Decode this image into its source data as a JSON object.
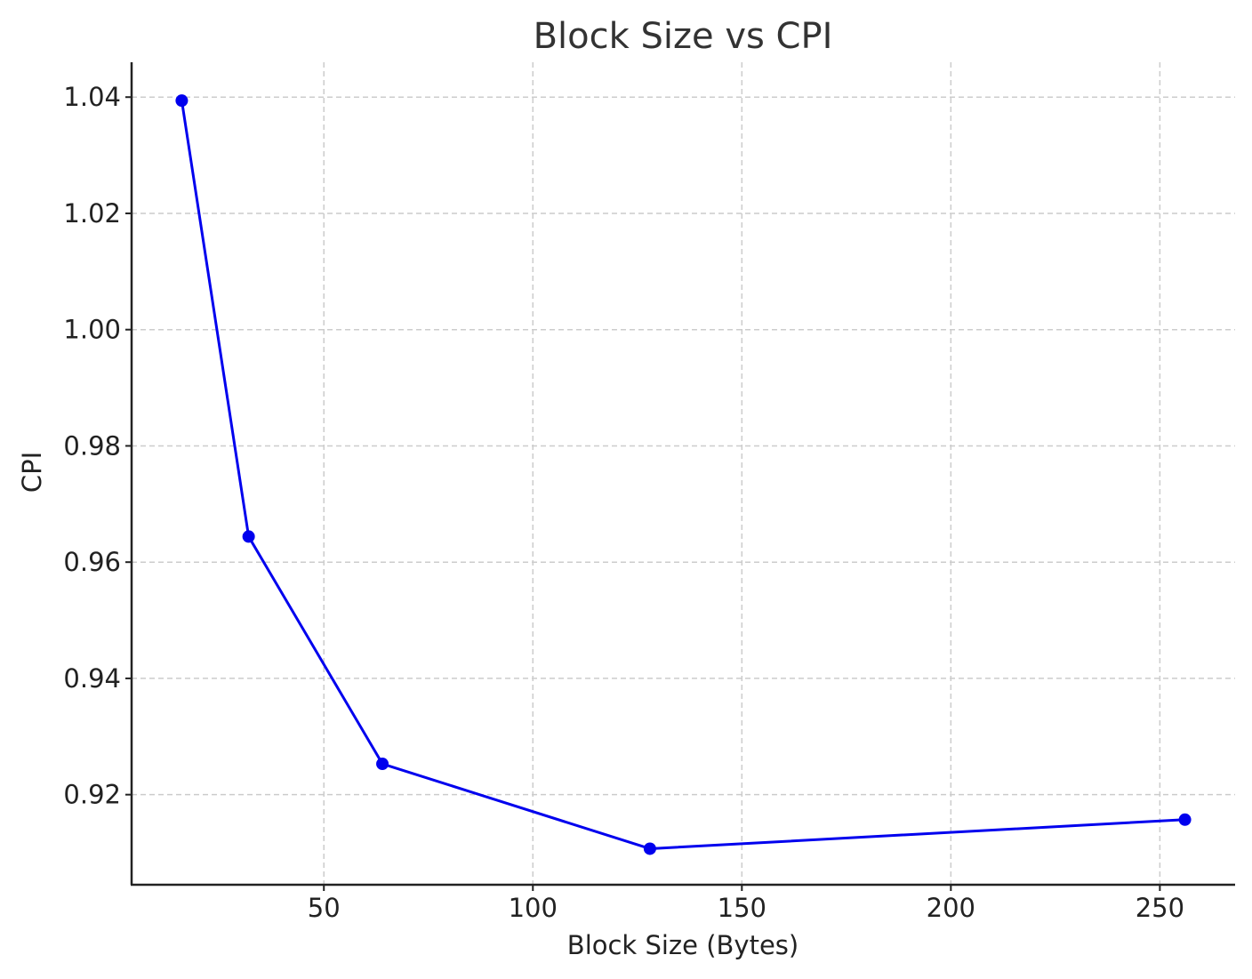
{
  "chart_data": {
    "type": "line",
    "title": "Block Size vs CPI",
    "xlabel": "Block Size (Bytes)",
    "ylabel": "CPI",
    "xlim": [
      4,
      268
    ],
    "ylim": [
      0.9045,
      1.046
    ],
    "xticks": [
      50,
      100,
      150,
      200,
      250
    ],
    "xtick_labels": [
      "50",
      "100",
      "150",
      "200",
      "250"
    ],
    "yticks": [
      0.92,
      0.94,
      0.96,
      0.98,
      1.0,
      1.02,
      1.04
    ],
    "ytick_labels": [
      "0.92",
      "0.94",
      "0.96",
      "0.98",
      "1.00",
      "1.02",
      "1.04"
    ],
    "grid": true,
    "series": [
      {
        "color": "#0000ee",
        "marker": "circle",
        "x": [
          16,
          32,
          64,
          128,
          256
        ],
        "y": [
          1.0394,
          0.9644,
          0.9253,
          0.9107,
          0.9157
        ]
      }
    ]
  }
}
